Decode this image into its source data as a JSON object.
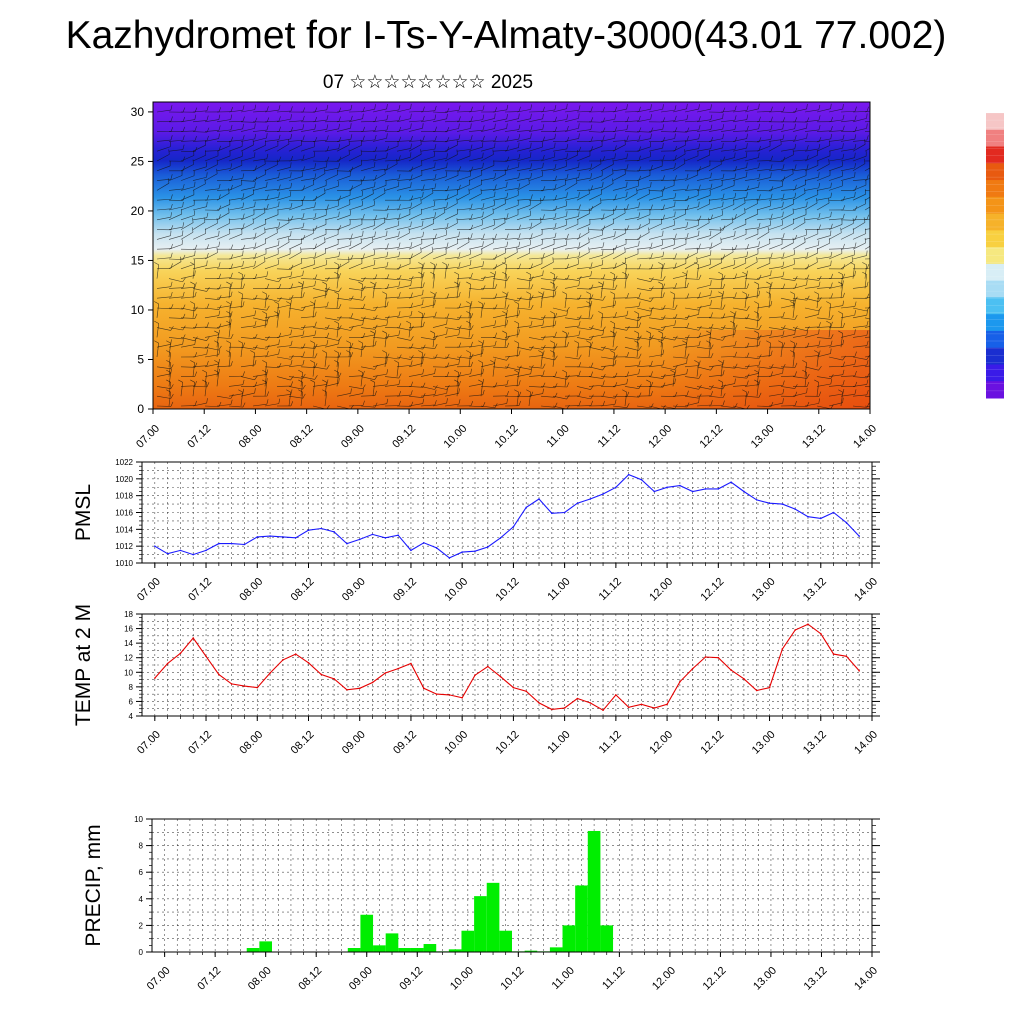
{
  "title": "Kazhydromet for I-Ts-Y-Almaty-3000(43.01 77.002)",
  "subtitle": "07 ☆☆☆☆☆☆☆☆ 2025",
  "colors": {
    "pmsl": "#1a1aff",
    "temp": "#e60000",
    "precip": "#00ee00"
  },
  "chart_data": [
    {
      "type": "heatmap",
      "title": "",
      "ylim": [
        0,
        31
      ],
      "y_ticks": [
        "0",
        "5",
        "10",
        "15",
        "20",
        "25",
        "30"
      ],
      "x_ticks": [
        "07.00",
        "07.12",
        "08.00",
        "08.12",
        "09.00",
        "09.12",
        "10.00",
        "10.12",
        "11.00",
        "11.12",
        "12.00",
        "12.12",
        "13.00",
        "13.12",
        "14.00"
      ],
      "overlay": "wind barbs",
      "colorbar": {
        "position": "right",
        "colors": [
          "#6a11e0",
          "#3a1be8",
          "#1a2ed0",
          "#1760e8",
          "#1c98ee",
          "#4cc0f2",
          "#a8dcf4",
          "#d8eef6",
          "#f6e880",
          "#f8d040",
          "#f6b22a",
          "#f49418",
          "#f07a12",
          "#e85a10",
          "#e22a20",
          "#f08080",
          "#f6c6c6"
        ]
      }
    },
    {
      "type": "line",
      "ylabel": "PMSL",
      "ylim": [
        1010,
        1022
      ],
      "y_ticks": [
        "1010",
        "1012",
        "1014",
        "1016",
        "1018",
        "1020",
        "1022"
      ],
      "x_ticks": [
        "07.00",
        "07.12",
        "08.00",
        "08.12",
        "09.00",
        "09.12",
        "10.00",
        "10.12",
        "11.00",
        "11.12",
        "12.00",
        "12.12",
        "13.00",
        "13.12",
        "14.00"
      ],
      "x_range": [
        -3,
        168
      ],
      "x": [
        0,
        3,
        6,
        9,
        12,
        15,
        18,
        21,
        24,
        27,
        30,
        33,
        36,
        39,
        42,
        45,
        48,
        51,
        54,
        57,
        60,
        63,
        66,
        69,
        72,
        75,
        78,
        81,
        84,
        87,
        90,
        93,
        96,
        99,
        102,
        105,
        108,
        111,
        114,
        117,
        120,
        123,
        126,
        129,
        132,
        135,
        138,
        141,
        144,
        147,
        150,
        153,
        156,
        159,
        162,
        165
      ],
      "values": [
        1012.0,
        1011.1,
        1011.5,
        1011.0,
        1011.5,
        1012.3,
        1012.3,
        1012.2,
        1013.1,
        1013.2,
        1013.1,
        1013.0,
        1013.9,
        1014.1,
        1013.7,
        1012.3,
        1012.8,
        1013.4,
        1013.0,
        1013.3,
        1011.5,
        1012.4,
        1011.8,
        1010.6,
        1011.3,
        1011.4,
        1011.9,
        1013.0,
        1014.3,
        1016.6,
        1017.6,
        1015.9,
        1016.0,
        1017.1,
        1017.6,
        1018.2,
        1019.0,
        1020.5,
        1019.9,
        1018.5,
        1019.0,
        1019.2,
        1018.5,
        1018.8,
        1018.8,
        1019.6,
        1018.5,
        1017.5,
        1017.1,
        1017.0,
        1016.4,
        1015.5,
        1015.3,
        1016.0,
        1014.8,
        1013.2
      ]
    },
    {
      "type": "line",
      "ylabel": "TEMP at 2 M",
      "ylim": [
        4,
        18
      ],
      "y_ticks": [
        "4",
        "6",
        "8",
        "10",
        "12",
        "14",
        "16",
        "18"
      ],
      "x_ticks": [
        "07.00",
        "07.12",
        "08.00",
        "08.12",
        "09.00",
        "09.12",
        "10.00",
        "10.12",
        "11.00",
        "11.12",
        "12.00",
        "12.12",
        "13.00",
        "13.12",
        "14.00"
      ],
      "x_range": [
        -3,
        168
      ],
      "x": [
        0,
        3,
        6,
        9,
        12,
        15,
        18,
        21,
        24,
        27,
        30,
        33,
        36,
        39,
        42,
        45,
        48,
        51,
        54,
        57,
        60,
        63,
        66,
        69,
        72,
        75,
        78,
        81,
        84,
        87,
        90,
        93,
        96,
        99,
        102,
        105,
        108,
        111,
        114,
        117,
        120,
        123,
        126,
        129,
        132,
        135,
        138,
        141,
        144,
        147,
        150,
        153,
        156,
        159,
        162,
        165
      ],
      "values": [
        9.2,
        11.2,
        12.6,
        14.7,
        12.2,
        9.7,
        8.4,
        8.1,
        7.9,
        9.9,
        11.7,
        12.5,
        11.3,
        9.7,
        9.1,
        7.6,
        7.8,
        8.6,
        9.9,
        10.5,
        11.2,
        7.8,
        7.0,
        6.9,
        6.5,
        9.6,
        10.8,
        9.4,
        7.9,
        7.4,
        5.8,
        4.9,
        5.1,
        6.4,
        5.8,
        4.8,
        6.9,
        5.2,
        5.6,
        5.1,
        5.6,
        8.7,
        10.5,
        12.1,
        12.0,
        10.3,
        9.1,
        7.5,
        7.9,
        13.2,
        15.8,
        16.6,
        15.3,
        12.5,
        12.2,
        10.2
      ]
    },
    {
      "type": "bar",
      "ylabel": "PRECIP, mm",
      "ylim": [
        0,
        10
      ],
      "y_ticks": [
        "0",
        "2",
        "4",
        "6",
        "8",
        "10"
      ],
      "x_ticks": [
        "07.00",
        "07.12",
        "08.00",
        "08.12",
        "09.00",
        "09.12",
        "10.00",
        "10.12",
        "11.00",
        "11.12",
        "12.00",
        "12.12",
        "13.00",
        "13.12",
        "14.00"
      ],
      "x_range": [
        -3,
        168
      ],
      "bar_width_hours": 3,
      "x": [
        21,
        24,
        45,
        48,
        51,
        54,
        57,
        60,
        63,
        66,
        69,
        72,
        75,
        78,
        81,
        84,
        87,
        90,
        93,
        96,
        99,
        102,
        105,
        108,
        111
      ],
      "values": [
        0.3,
        0.8,
        0.3,
        2.8,
        0.5,
        1.4,
        0.3,
        0.3,
        0.6,
        0.05,
        0.2,
        1.6,
        4.2,
        5.2,
        1.6,
        0.05,
        0.1,
        0.05,
        0.35,
        2.0,
        5.0,
        9.1,
        2.0,
        0,
        0
      ]
    }
  ]
}
